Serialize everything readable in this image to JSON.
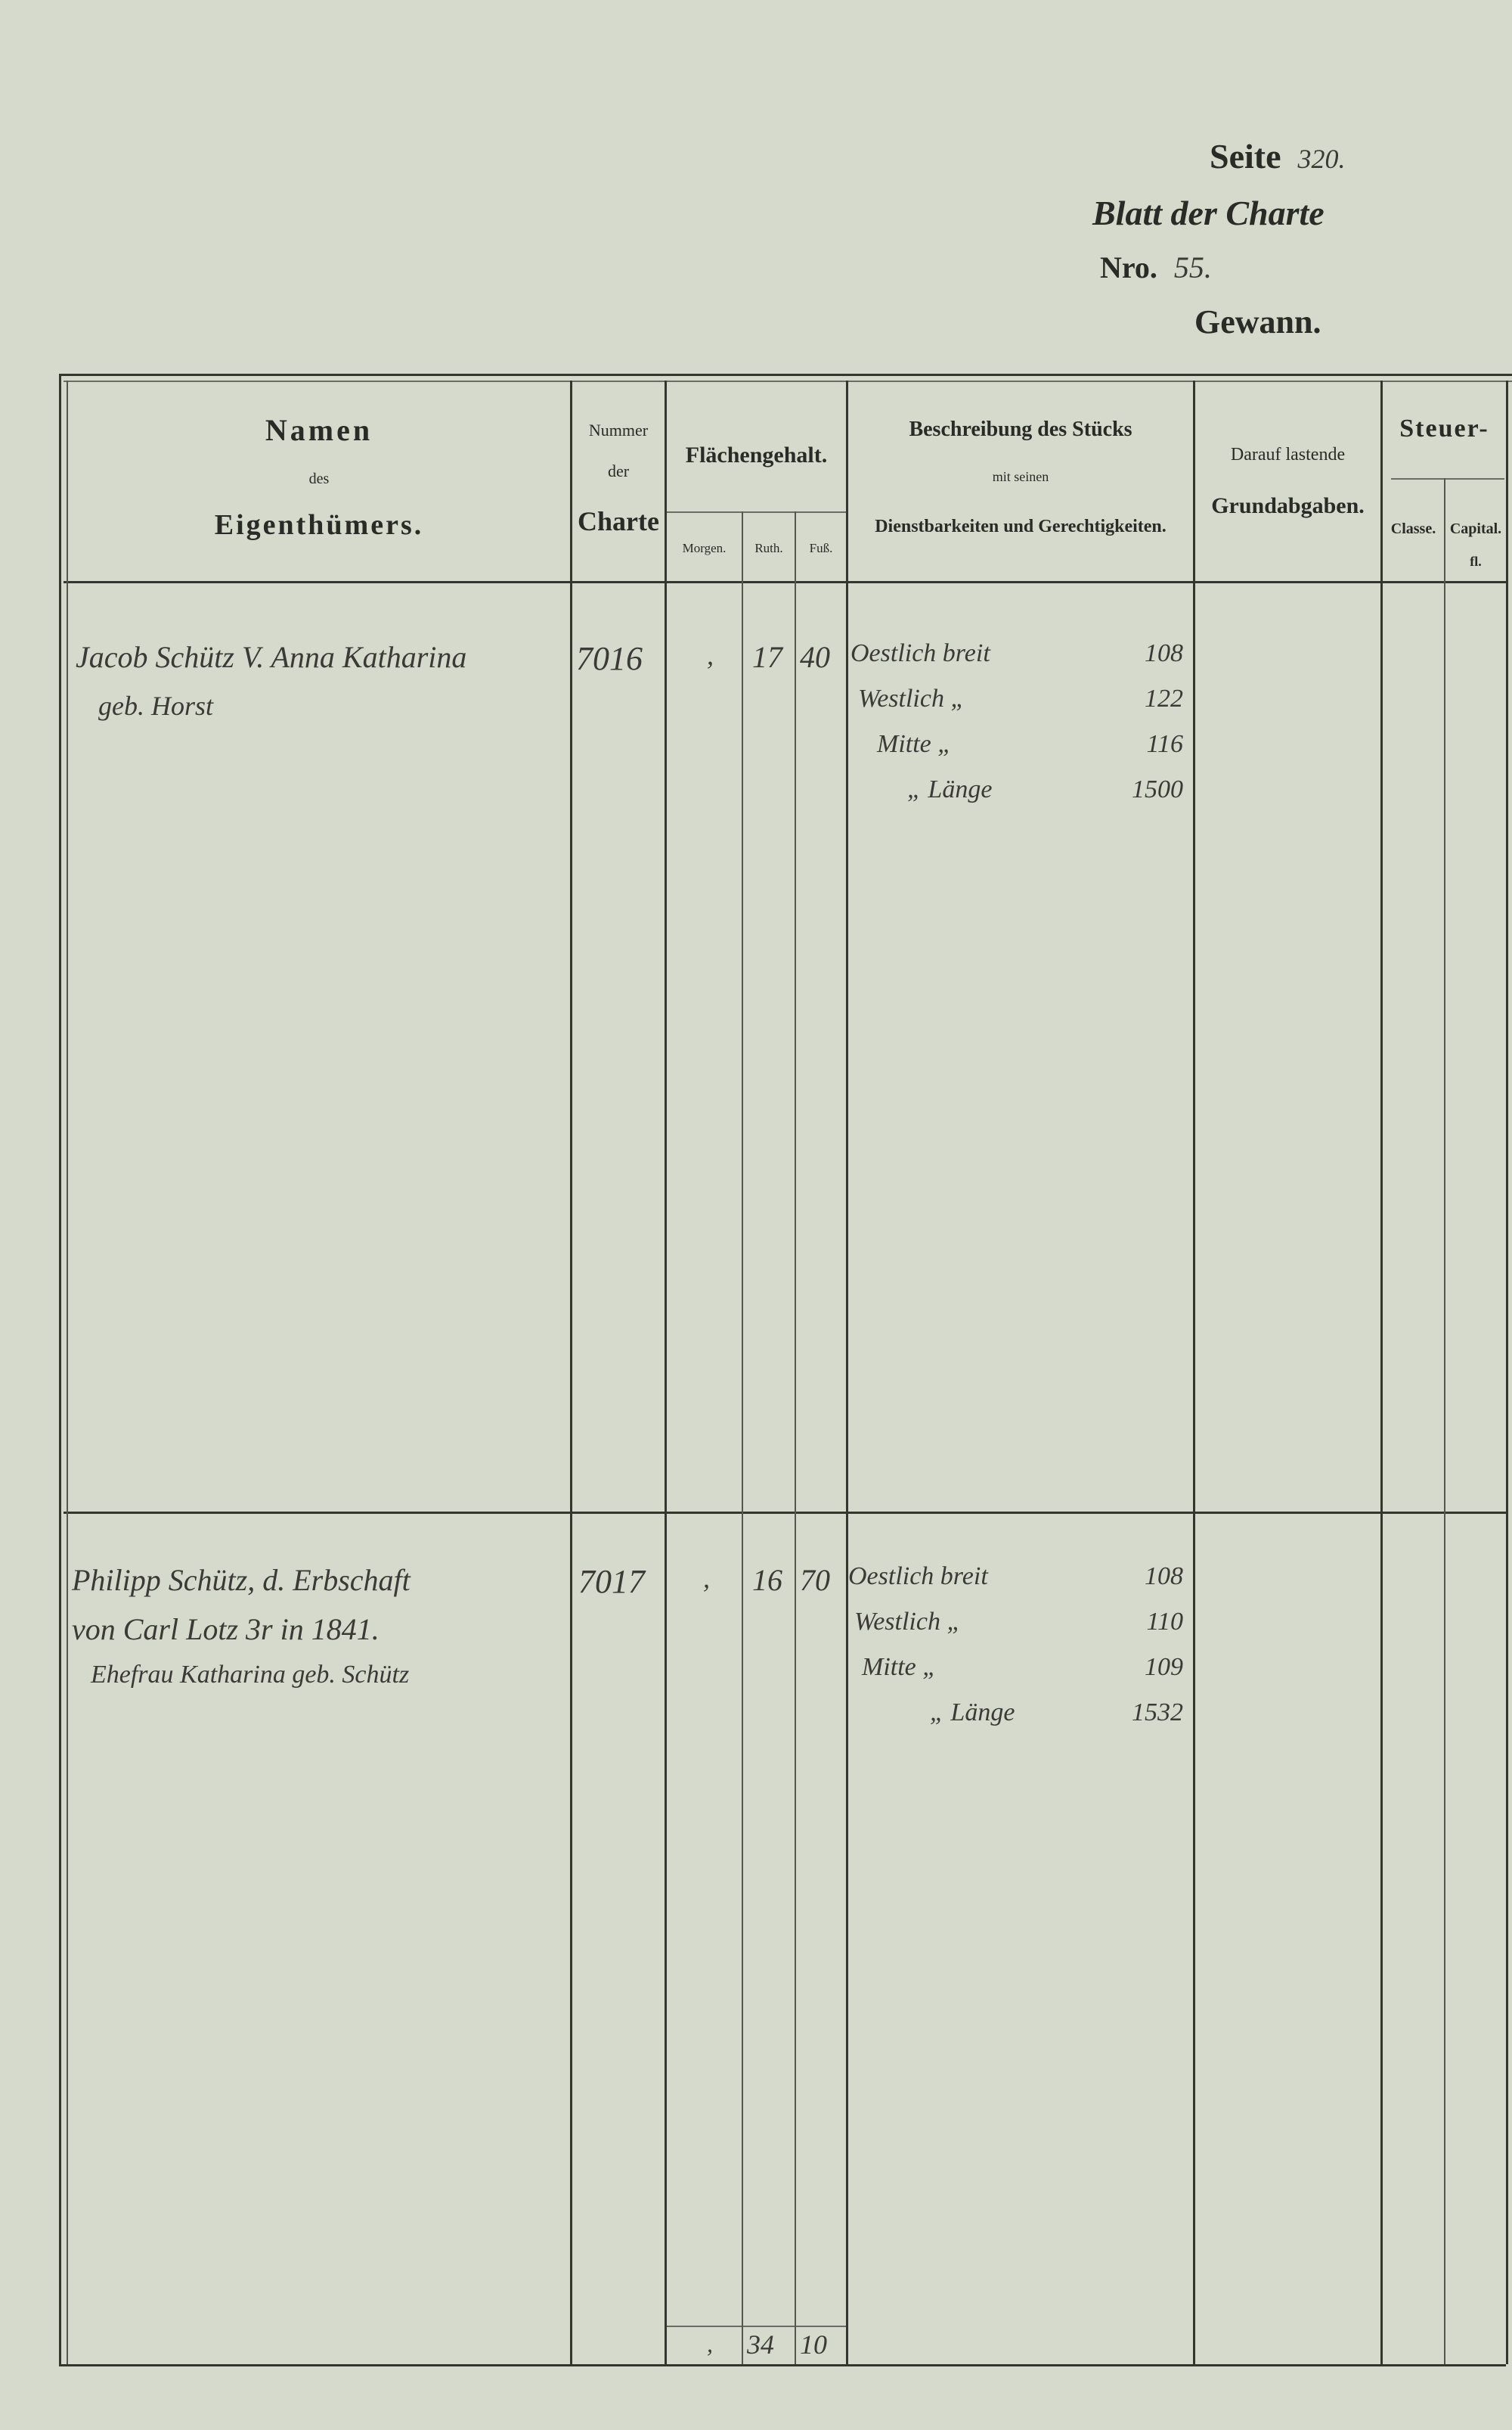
{
  "page_header": {
    "seite_label": "Seite",
    "seite_value": "320.",
    "blatt_label": "Blatt der Charte",
    "nro_label": "Nro.",
    "nro_value": "55.",
    "gewann_label": "Gewann."
  },
  "columns": {
    "namen": {
      "line1": "Namen",
      "line2": "des",
      "line3": "Eigenthümers."
    },
    "nummer": {
      "line1": "Nummer",
      "line2": "der",
      "line3": "Charte"
    },
    "flaechengehalt": {
      "title": "Flächengehalt.",
      "morgen": "Morgen.",
      "ruth": "Ruth.",
      "fuss": "Fuß."
    },
    "beschreibung": {
      "line1": "Beschreibung des Stücks",
      "line2": "mit seinen",
      "line3": "Dienstbarkeiten und Gerechtigkeiten."
    },
    "grundabgaben": {
      "line1": "Darauf lastende",
      "line2": "Grundabgaben."
    },
    "steuer": {
      "title": "Steuer-",
      "classe": "Classe.",
      "capital": "Capital.",
      "capital_unit": "fl."
    }
  },
  "entries": [
    {
      "owner_lines": [
        "Jacob Schütz V. Anna Katharina",
        "geb. Horst"
      ],
      "charte": "7016",
      "morgen": ",",
      "ruth": "17",
      "fuss": "40",
      "description": [
        {
          "label": "Oestlich breit",
          "value": "108"
        },
        {
          "label": "Westlich  „",
          "value": "122"
        },
        {
          "label": "Mitte  „",
          "value": "116"
        },
        {
          "label": "„  Länge",
          "value": "1500"
        }
      ]
    },
    {
      "owner_lines": [
        "Philipp Schütz, d. Erbschaft",
        "von Carl Lotz 3r in 1841.",
        "Ehefrau Katharina geb. Schütz"
      ],
      "charte": "7017",
      "morgen": ",",
      "ruth": "16",
      "fuss": "70",
      "description": [
        {
          "label": "Oestlich breit",
          "value": "108"
        },
        {
          "label": "Westlich  „",
          "value": "110"
        },
        {
          "label": "Mitte  „",
          "value": "109"
        },
        {
          "label": "„  Länge",
          "value": "1532"
        }
      ]
    }
  ],
  "totals": {
    "morgen": ",",
    "ruth": "34",
    "fuss": "10"
  },
  "colors": {
    "paper": "#d6dacd",
    "ink": "#33352f"
  }
}
